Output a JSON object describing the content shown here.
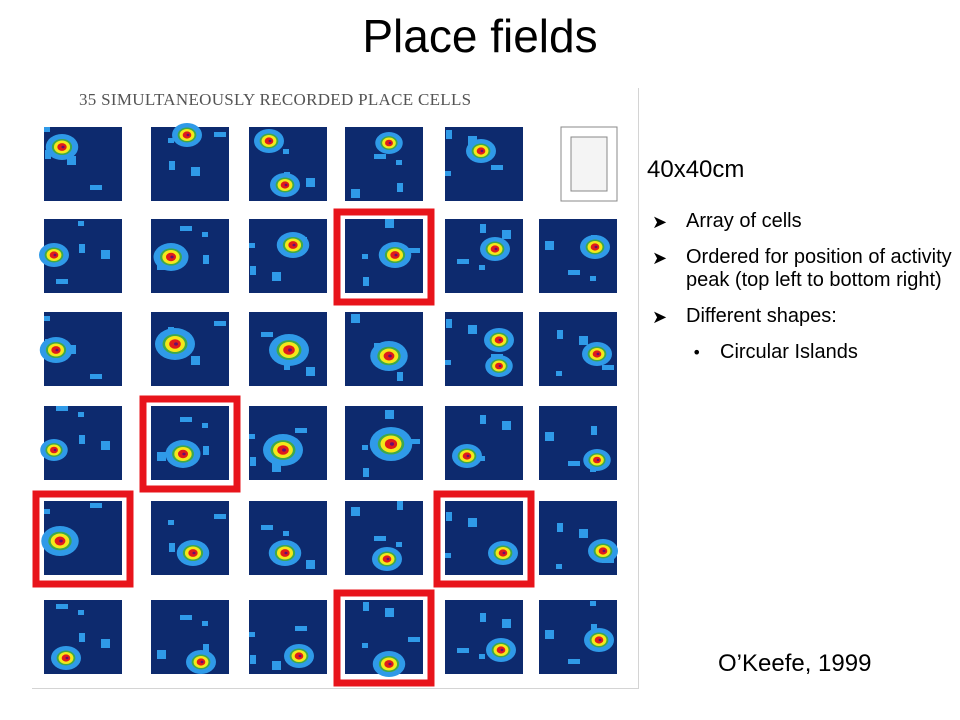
{
  "slide": {
    "title": "Place fields",
    "figure_caption": "35 SIMULTANEOUSLY RECORDED PLACE CELLS",
    "arena_size": "40x40cm",
    "bullets": [
      {
        "text": "Array of cells",
        "icon": "arrow-bullet-icon"
      },
      {
        "text": "Ordered for position of activity peak (top left to bottom right)",
        "icon": "arrow-bullet-icon"
      },
      {
        "text": "Different shapes:",
        "icon": "arrow-bullet-icon"
      }
    ],
    "sub_bullets": [
      {
        "text": "Circular Islands",
        "icon": "dot-bullet-icon"
      }
    ],
    "citation": "O’Keefe, 1999"
  },
  "figure": {
    "rows": 6,
    "columns": 6,
    "total_cells": 35,
    "reference_cell": {
      "row": 1,
      "col": 6
    },
    "highlighted_cells": [
      {
        "row": 2,
        "col": 4
      },
      {
        "row": 4,
        "col": 2
      },
      {
        "row": 5,
        "col": 1
      },
      {
        "row": 5,
        "col": 5
      },
      {
        "row": 6,
        "col": 4
      }
    ],
    "colors": {
      "background": "#0d2a6e",
      "low": "#2f9ae8",
      "mid": "#f4e81a",
      "high": "#e01b1b",
      "peak": "#6b0d6b",
      "highlight": "#e8141b"
    }
  }
}
